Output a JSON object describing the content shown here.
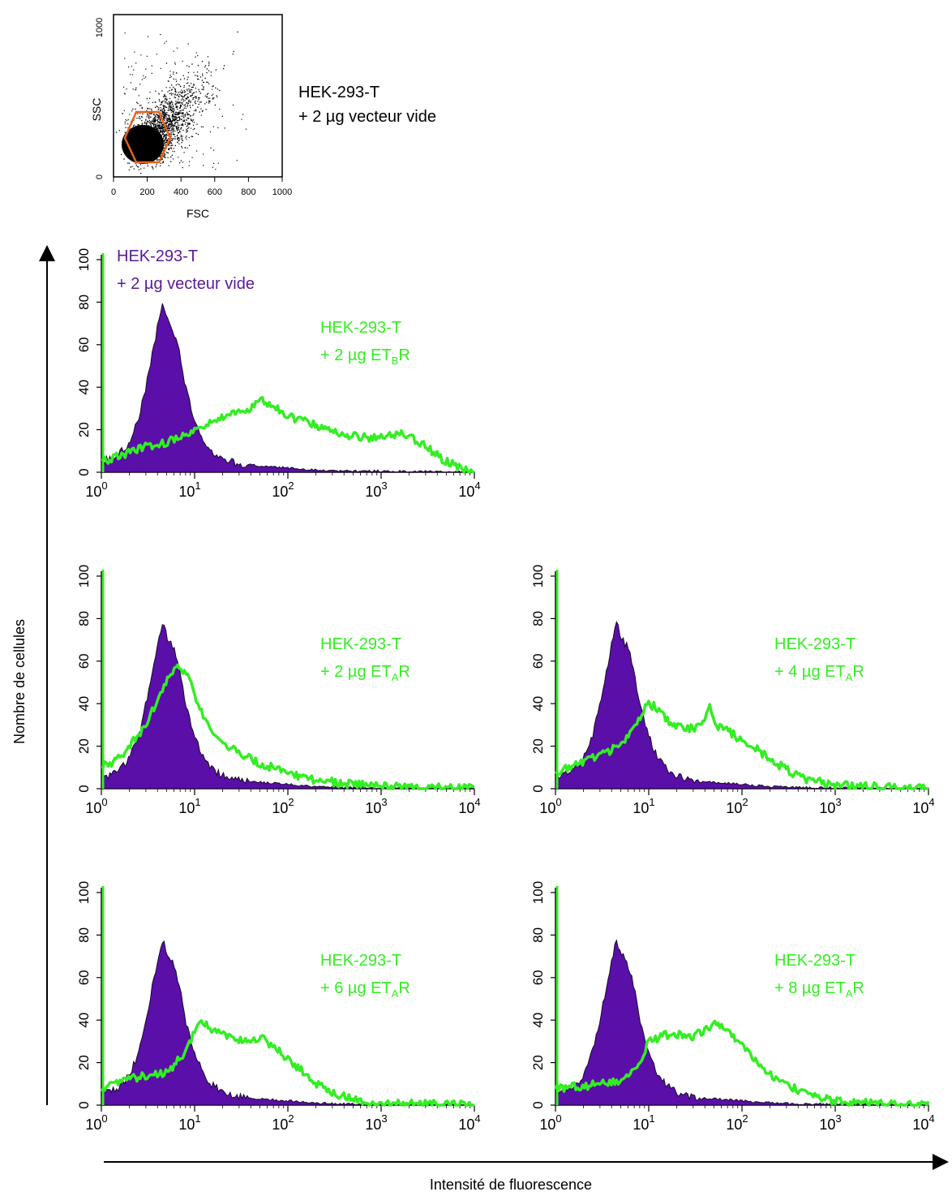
{
  "colors": {
    "control_fill": "#5a0fa8",
    "control_edge": "#1a0a2a",
    "test_line": "#33ee22",
    "gate": "#e8631a",
    "dots": "#000000",
    "text_black": "#000000",
    "text_purple": "#5a1a9a"
  },
  "scatter": {
    "xlabel": "FSC",
    "ylabel": "SSC",
    "x_ticks": [
      "0",
      "200",
      "400",
      "600",
      "800",
      "1000"
    ],
    "y_ticks": [
      "0",
      "1000"
    ],
    "label_line1": "HEK-293-T",
    "label_line2": "+ 2 µg vecteur vide"
  },
  "global_axes": {
    "ylabel": "Nombre de cellules",
    "xlabel": "Intensité de fluorescence"
  },
  "hist_axes": {
    "y_ticks": [
      "0",
      "20",
      "40",
      "60",
      "80",
      "100"
    ],
    "x_ticks": [
      {
        "base": "10",
        "exp": "0"
      },
      {
        "base": "10",
        "exp": "1"
      },
      {
        "base": "10",
        "exp": "2"
      },
      {
        "base": "10",
        "exp": "3"
      },
      {
        "base": "10",
        "exp": "4"
      }
    ]
  },
  "legend_control": {
    "line1": "HEK-293-T",
    "line2": "+ 2 µg vecteur vide"
  },
  "chart_data": [
    {
      "type": "histogram",
      "panel": "ETB",
      "xscale": "log",
      "xlim": [
        1,
        10000
      ],
      "ylim": [
        0,
        100
      ],
      "label_line1": "HEK-293-T",
      "label_line2": {
        "pre": "+ 2 µg ET",
        "sub": "B",
        "post": "R"
      },
      "control": {
        "x": [
          1,
          1.5,
          2,
          2.5,
          3,
          3.5,
          4,
          4.5,
          5,
          6,
          7,
          8,
          10,
          12,
          15,
          20,
          30,
          50,
          100,
          200,
          400,
          1000,
          10000
        ],
        "y": [
          5,
          8,
          14,
          25,
          40,
          55,
          68,
          78,
          72,
          66,
          55,
          40,
          25,
          16,
          10,
          6,
          4,
          3,
          2,
          1,
          0.5,
          0.5,
          0
        ]
      },
      "test": {
        "x": [
          1,
          2,
          3,
          5,
          8,
          12,
          20,
          30,
          40,
          50,
          60,
          80,
          100,
          150,
          200,
          300,
          500,
          800,
          1000,
          1500,
          2000,
          3000,
          5000,
          10000
        ],
        "y": [
          5,
          9,
          12,
          14,
          17,
          21,
          26,
          28,
          30,
          34,
          33,
          30,
          26,
          24,
          22,
          20,
          17,
          16,
          16,
          18,
          17,
          12,
          5,
          0
        ]
      }
    },
    {
      "type": "histogram",
      "panel": "ETA-2",
      "xscale": "log",
      "xlim": [
        1,
        10000
      ],
      "ylim": [
        0,
        100
      ],
      "label_line1": "HEK-293-T",
      "label_line2": {
        "pre": "+ 2 µg ET",
        "sub": "A",
        "post": "R"
      },
      "control": {
        "x": [
          1,
          1.5,
          2,
          2.5,
          3,
          3.5,
          4,
          4.5,
          5,
          6,
          7,
          8,
          10,
          12,
          15,
          20,
          30,
          50,
          100,
          200,
          400,
          1000,
          10000
        ],
        "y": [
          5,
          8,
          14,
          25,
          40,
          55,
          68,
          78,
          72,
          66,
          55,
          40,
          25,
          16,
          10,
          6,
          4,
          3,
          2,
          1,
          0.5,
          0.5,
          0
        ]
      },
      "test": {
        "x": [
          1,
          1.5,
          2,
          3,
          4,
          5,
          6,
          7,
          8,
          10,
          12,
          15,
          20,
          30,
          50,
          100,
          200,
          500,
          1000,
          3000,
          10000
        ],
        "y": [
          10,
          14,
          20,
          30,
          42,
          50,
          56,
          57,
          55,
          45,
          35,
          28,
          22,
          17,
          12,
          7,
          4,
          2,
          1,
          0.5,
          0
        ]
      }
    },
    {
      "type": "histogram",
      "panel": "ETA-4",
      "xscale": "log",
      "xlim": [
        1,
        10000
      ],
      "ylim": [
        0,
        100
      ],
      "label_line1": "HEK-293-T",
      "label_line2": {
        "pre": "+ 4 µg ET",
        "sub": "A",
        "post": "R"
      },
      "control": {
        "x": [
          1,
          1.5,
          2,
          2.5,
          3,
          3.5,
          4,
          4.5,
          5,
          6,
          7,
          8,
          10,
          12,
          15,
          20,
          30,
          50,
          100,
          200,
          400,
          1000,
          10000
        ],
        "y": [
          5,
          8,
          14,
          25,
          40,
          55,
          68,
          78,
          72,
          66,
          55,
          40,
          25,
          16,
          10,
          6,
          4,
          3,
          2,
          1,
          0.5,
          0.5,
          0
        ]
      },
      "test": {
        "x": [
          1,
          2,
          3,
          5,
          8,
          10,
          12,
          15,
          20,
          30,
          40,
          45,
          50,
          60,
          80,
          100,
          150,
          200,
          300,
          500,
          1000,
          3000,
          10000
        ],
        "y": [
          8,
          12,
          16,
          20,
          34,
          40,
          38,
          33,
          30,
          28,
          32,
          38,
          32,
          28,
          26,
          22,
          18,
          14,
          9,
          4,
          2,
          1,
          0
        ]
      }
    },
    {
      "type": "histogram",
      "panel": "ETA-6",
      "xscale": "log",
      "xlim": [
        1,
        10000
      ],
      "ylim": [
        0,
        100
      ],
      "label_line1": "HEK-293-T",
      "label_line2": {
        "pre": "+ 6 µg ET",
        "sub": "A",
        "post": "R"
      },
      "control": {
        "x": [
          1,
          1.5,
          2,
          2.5,
          3,
          3.5,
          4,
          4.5,
          5,
          6,
          7,
          8,
          10,
          12,
          15,
          20,
          30,
          50,
          100,
          200,
          400,
          1000,
          10000
        ],
        "y": [
          5,
          8,
          14,
          25,
          40,
          55,
          68,
          78,
          72,
          66,
          55,
          40,
          25,
          16,
          10,
          6,
          4,
          3,
          2,
          1,
          0.5,
          0.5,
          0
        ]
      },
      "test": {
        "x": [
          1,
          2,
          3,
          5,
          8,
          10,
          12,
          15,
          20,
          30,
          50,
          70,
          100,
          150,
          200,
          300,
          500,
          1000,
          3000,
          10000
        ],
        "y": [
          8,
          12,
          14,
          15,
          25,
          35,
          40,
          36,
          33,
          30,
          32,
          28,
          22,
          15,
          10,
          6,
          3,
          1,
          0.5,
          0
        ]
      }
    },
    {
      "type": "histogram",
      "panel": "ETA-8",
      "xscale": "log",
      "xlim": [
        1,
        10000
      ],
      "ylim": [
        0,
        100
      ],
      "label_line1": "HEK-293-T",
      "label_line2": {
        "pre": "+ 8 µg ET",
        "sub": "A",
        "post": "R"
      },
      "control": {
        "x": [
          1,
          1.5,
          2,
          2.5,
          3,
          3.5,
          4,
          4.5,
          5,
          6,
          7,
          8,
          10,
          12,
          15,
          20,
          30,
          50,
          100,
          200,
          400,
          1000,
          10000
        ],
        "y": [
          5,
          8,
          14,
          25,
          40,
          55,
          68,
          78,
          72,
          66,
          55,
          40,
          25,
          16,
          10,
          6,
          4,
          3,
          2,
          1,
          0.5,
          0.5,
          0
        ]
      },
      "test": {
        "x": [
          1,
          2,
          3,
          5,
          8,
          10,
          15,
          20,
          30,
          50,
          70,
          100,
          150,
          200,
          300,
          500,
          1000,
          3000,
          10000
        ],
        "y": [
          8,
          9,
          10,
          12,
          20,
          30,
          33,
          33,
          32,
          38,
          35,
          28,
          20,
          14,
          10,
          5,
          2,
          0.5,
          0
        ]
      }
    }
  ]
}
